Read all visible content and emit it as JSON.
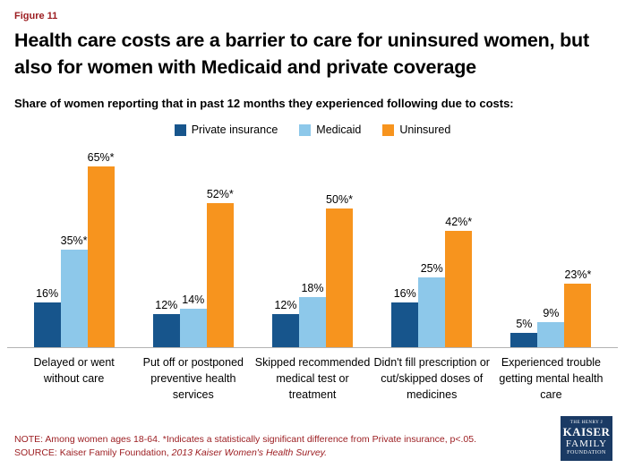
{
  "header": {
    "figure_label": "Figure 11",
    "title": "Health care costs are a barrier to care for uninsured women, but also for women with Medicaid and private coverage",
    "subtitle": "Share of women reporting that in past 12 months they experienced following due to costs:"
  },
  "chart_data": {
    "type": "bar",
    "title": "Share of women reporting that in past 12 months they experienced following due to costs",
    "categories": [
      "Delayed or went without care",
      "Put off or postponed preventive health services",
      "Skipped recommended medical test or treatment",
      "Didn't fill prescription or cut/skipped doses of medicines",
      "Experienced trouble getting mental health care"
    ],
    "series": [
      {
        "name": "Private insurance",
        "color": "#17558c",
        "values": [
          16,
          12,
          12,
          16,
          5
        ],
        "labels": [
          "16%",
          "12%",
          "12%",
          "16%",
          "5%"
        ]
      },
      {
        "name": "Medicaid",
        "color": "#8dc8ea",
        "values": [
          35,
          14,
          18,
          25,
          9
        ],
        "labels": [
          "35%*",
          "14%",
          "18%",
          "25%",
          "9%"
        ]
      },
      {
        "name": "Uninsured",
        "color": "#f7941e",
        "values": [
          65,
          52,
          50,
          42,
          23
        ],
        "labels": [
          "65%*",
          "52%*",
          "50%*",
          "42%*",
          "23%*"
        ]
      }
    ],
    "xlabel": "",
    "ylabel": "",
    "ylim": [
      0,
      70
    ],
    "grid": false,
    "legend_position": "top",
    "value_label_note": "* indicates statistically significant difference from Private insurance"
  },
  "footer": {
    "note": "NOTE: Among women ages 18-64. *Indicates a statistically significant difference from Private insurance, p<.05.",
    "source_prefix": "SOURCE: Kaiser Family Foundation, ",
    "source_italic": "2013 Kaiser Women's Health Survey."
  },
  "logo": {
    "line1": "THE HENRY J",
    "line2": "KAISER",
    "line3": "FAMILY",
    "line4": "FOUNDATION"
  }
}
